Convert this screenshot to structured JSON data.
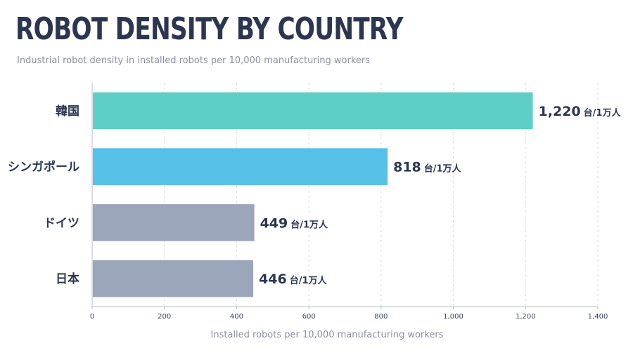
{
  "chart_data": {
    "type": "bar",
    "orientation": "horizontal",
    "title": "ROBOT DENSITY BY COUNTRY",
    "subtitle": "Industrial robot density in installed robots per 10,000 manufacturing workers",
    "xlabel": "Installed robots per 10,000 manufacturing workers",
    "ylabel": "",
    "xlim": [
      0,
      1400
    ],
    "xticks": [
      0,
      200,
      400,
      600,
      800,
      1000,
      1200,
      1400
    ],
    "xtick_labels": [
      "0",
      "200",
      "400",
      "600",
      "800",
      "1,000",
      "1,200",
      "1,400"
    ],
    "grid": "vertical dashed",
    "categories": [
      "韓国",
      "シンガポール",
      "ドイツ",
      "日本"
    ],
    "values": [
      1220,
      818,
      449,
      446
    ],
    "value_labels": [
      "1,220",
      "818",
      "449",
      "446"
    ],
    "value_unit": "台/1万人",
    "bar_colors": [
      "#5ecfc6",
      "#56c1e6",
      "#9ba6bb",
      "#9ba6bb"
    ]
  },
  "colors": {
    "title": "#2c3650",
    "subtitle": "#8a90a2",
    "axis": "#b8bdca",
    "grid": "#d9dce3"
  }
}
